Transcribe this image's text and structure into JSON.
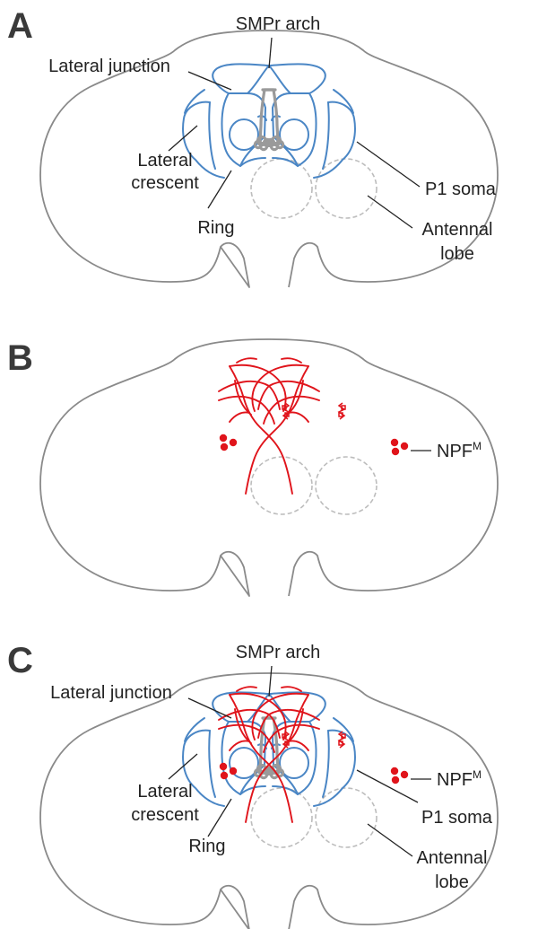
{
  "panels": [
    {
      "letter": "A",
      "labels": {
        "smpr_arch": "SMPr arch",
        "lateral_junction": "Lateral junction",
        "lateral_crescent": "Lateral crescent",
        "lateral_crescent_line1": "Lateral",
        "lateral_crescent_line2": "crescent",
        "ring": "Ring",
        "p1_soma": "P1 soma",
        "antennal_lobe": "Antennal lobe",
        "antennal_lobe_line1": "Antennal",
        "antennal_lobe_line2": "lobe"
      }
    },
    {
      "letter": "B",
      "labels": {
        "npf_base": "NPF",
        "npf_sup": "M"
      }
    },
    {
      "letter": "C",
      "labels": {
        "smpr_arch": "SMPr arch",
        "lateral_junction": "Lateral junction",
        "lateral_crescent": "Lateral crescent",
        "lateral_crescent_line1": "Lateral",
        "lateral_crescent_line2": "crescent",
        "ring": "Ring",
        "p1_soma": "P1 soma",
        "antennal_lobe": "Antennal lobe",
        "antennal_lobe_line1": "Antennal",
        "antennal_lobe_line2": "lobe",
        "npf_base": "NPF",
        "npf_sup": "M"
      }
    }
  ],
  "colors": {
    "brain_outline": "#8a8a8a",
    "antennal_lobe": "#bdbdbd",
    "p1_neurons": "#4a86c5",
    "p1_soma": "#9a9a9a",
    "npf_neurons": "#e0141b",
    "text": "#222222"
  }
}
